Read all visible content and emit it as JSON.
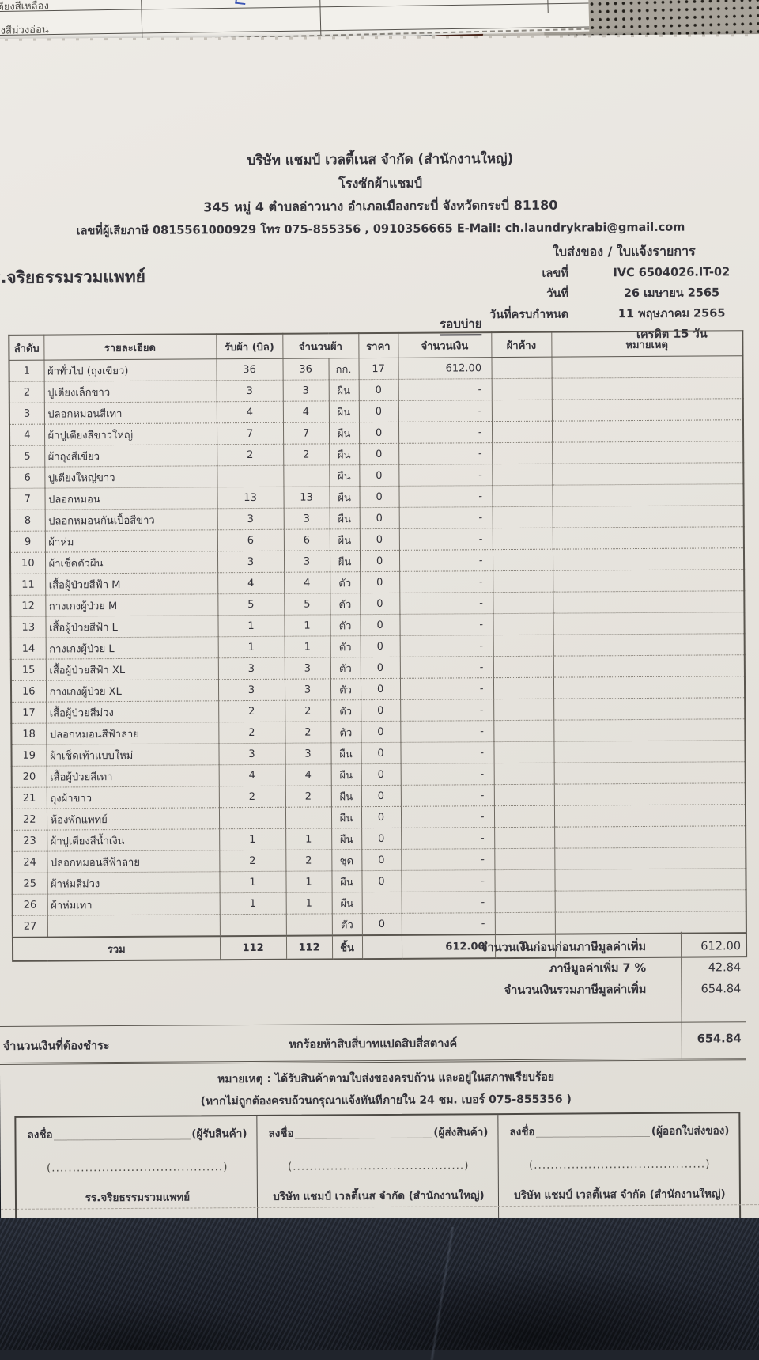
{
  "background": {
    "scrap_labels": [
      "ตียงสีเหลือง",
      "ียงสีม่วงอ่อน"
    ]
  },
  "header": {
    "company": "บริษัท แชมป์ เวลตี้เนส จำกัด (สำนักงานใหญ่)",
    "branch": "โรงซักผ้าแชมป์",
    "address": "345 หมู่ 4 ตำบลอ่าวนาง อำเภอเมืองกระบี่ จังหวัดกระบี่ 81180",
    "contact": "เลขที่ผู้เสียภาษี 0815561000929 โทร 075-855356 , 0910356665  E-Mail: ch.laundrykrabi@gmail.com"
  },
  "doc": {
    "title": "ใบส่งของ / ใบแจ้งรายการ",
    "customer": "รร.จริยธรรมรวมแพทย์",
    "round": "รอบบ่าย",
    "meta_rows": [
      {
        "label": "เลขที่",
        "value": "IVC 6504026.IT-02"
      },
      {
        "label": "วันที่",
        "value": "26 เมษายน 2565"
      },
      {
        "label": "วันที่ครบกำหนด",
        "value": "11 พฤษภาคม 2565"
      },
      {
        "label": "",
        "value": "เครดิต 15 วัน"
      }
    ]
  },
  "table": {
    "headers": {
      "no": "ลำดับ",
      "desc": "รายละเอียด",
      "received": "รับผ้า (บิล)",
      "qty": "จำนวนผ้า",
      "price": "ราคา",
      "amount": "จำนวนเงิน",
      "pending": "ผ้าค้าง",
      "remark": "หมายเหตุ"
    },
    "rows": [
      {
        "no": "1",
        "desc": "ผ้าทั่วไป (ถุงเขียว)",
        "recv": "36",
        "qty": "36",
        "unit": "กก.",
        "price": "17",
        "amount": "612.00",
        "pending": "",
        "remark": ""
      },
      {
        "no": "2",
        "desc": "ปูเตียงเล็กขาว",
        "recv": "3",
        "qty": "3",
        "unit": "ผืน",
        "price": "0",
        "amount": "-",
        "pending": "",
        "remark": ""
      },
      {
        "no": "3",
        "desc": "ปลอกหมอนสีเทา",
        "recv": "4",
        "qty": "4",
        "unit": "ผืน",
        "price": "0",
        "amount": "-",
        "pending": "",
        "remark": ""
      },
      {
        "no": "4",
        "desc": "ผ้าปูเตียงสีขาวใหญ่",
        "recv": "7",
        "qty": "7",
        "unit": "ผืน",
        "price": "0",
        "amount": "-",
        "pending": "",
        "remark": ""
      },
      {
        "no": "5",
        "desc": "ผ้าถุงสีเขียว",
        "recv": "2",
        "qty": "2",
        "unit": "ผืน",
        "price": "0",
        "amount": "-",
        "pending": "",
        "remark": ""
      },
      {
        "no": "6",
        "desc": "ปูเตียงใหญ่ขาว",
        "recv": "",
        "qty": "",
        "unit": "ผืน",
        "price": "0",
        "amount": "-",
        "pending": "",
        "remark": ""
      },
      {
        "no": "7",
        "desc": "ปลอกหมอน",
        "recv": "13",
        "qty": "13",
        "unit": "ผืน",
        "price": "0",
        "amount": "-",
        "pending": "",
        "remark": ""
      },
      {
        "no": "8",
        "desc": "ปลอกหมอนกันเปื้อสีขาว",
        "recv": "3",
        "qty": "3",
        "unit": "ผืน",
        "price": "0",
        "amount": "-",
        "pending": "",
        "remark": ""
      },
      {
        "no": "9",
        "desc": "ผ้าห่ม",
        "recv": "6",
        "qty": "6",
        "unit": "ผืน",
        "price": "0",
        "amount": "-",
        "pending": "",
        "remark": ""
      },
      {
        "no": "10",
        "desc": "ผ้าเช็ดตัวผืน",
        "recv": "3",
        "qty": "3",
        "unit": "ผืน",
        "price": "0",
        "amount": "-",
        "pending": "",
        "remark": ""
      },
      {
        "no": "11",
        "desc": "เสื้อผู้ป่วยสีฟ้า M",
        "recv": "4",
        "qty": "4",
        "unit": "ตัว",
        "price": "0",
        "amount": "-",
        "pending": "",
        "remark": ""
      },
      {
        "no": "12",
        "desc": "กางเกงผู้ป่วย M",
        "recv": "5",
        "qty": "5",
        "unit": "ตัว",
        "price": "0",
        "amount": "-",
        "pending": "",
        "remark": ""
      },
      {
        "no": "13",
        "desc": "เสื้อผู้ป่วยสีฟ้า L",
        "recv": "1",
        "qty": "1",
        "unit": "ตัว",
        "price": "0",
        "amount": "-",
        "pending": "",
        "remark": ""
      },
      {
        "no": "14",
        "desc": "กางเกงผู้ป่วย L",
        "recv": "1",
        "qty": "1",
        "unit": "ตัว",
        "price": "0",
        "amount": "-",
        "pending": "",
        "remark": ""
      },
      {
        "no": "15",
        "desc": "เสื้อผู้ป่วยสีฟ้า XL",
        "recv": "3",
        "qty": "3",
        "unit": "ตัว",
        "price": "0",
        "amount": "-",
        "pending": "",
        "remark": ""
      },
      {
        "no": "16",
        "desc": "กางเกงผู้ป่วย XL",
        "recv": "3",
        "qty": "3",
        "unit": "ตัว",
        "price": "0",
        "amount": "-",
        "pending": "",
        "remark": ""
      },
      {
        "no": "17",
        "desc": "เสื้อผู้ป่วยสีม่วง",
        "recv": "2",
        "qty": "2",
        "unit": "ตัว",
        "price": "0",
        "amount": "-",
        "pending": "",
        "remark": ""
      },
      {
        "no": "18",
        "desc": "ปลอกหมอนสีฟ้าลาย",
        "recv": "2",
        "qty": "2",
        "unit": "ตัว",
        "price": "0",
        "amount": "-",
        "pending": "",
        "remark": ""
      },
      {
        "no": "19",
        "desc": "ผ้าเช็ดเท้าแบบใหม่",
        "recv": "3",
        "qty": "3",
        "unit": "ผืน",
        "price": "0",
        "amount": "-",
        "pending": "",
        "remark": ""
      },
      {
        "no": "20",
        "desc": "เสื้อผู้ป่วยสีเทา",
        "recv": "4",
        "qty": "4",
        "unit": "ผืน",
        "price": "0",
        "amount": "-",
        "pending": "",
        "remark": ""
      },
      {
        "no": "21",
        "desc": "ถุงผ้าขาว",
        "recv": "2",
        "qty": "2",
        "unit": "ผืน",
        "price": "0",
        "amount": "-",
        "pending": "",
        "remark": ""
      },
      {
        "no": "22",
        "desc": "ห้องพักแพทย์",
        "recv": "",
        "qty": "",
        "unit": "ผืน",
        "price": "0",
        "amount": "-",
        "pending": "",
        "remark": ""
      },
      {
        "no": "23",
        "desc": "ผ้าปูเตียงสีน้ำเงิน",
        "recv": "1",
        "qty": "1",
        "unit": "ผืน",
        "price": "0",
        "amount": "-",
        "pending": "",
        "remark": ""
      },
      {
        "no": "24",
        "desc": "ปลอกหมอนสีฟ้าลาย",
        "recv": "2",
        "qty": "2",
        "unit": "ชุด",
        "price": "0",
        "amount": "-",
        "pending": "",
        "remark": ""
      },
      {
        "no": "25",
        "desc": "ผ้าห่มสีม่วง",
        "recv": "1",
        "qty": "1",
        "unit": "ผืน",
        "price": "0",
        "amount": "-",
        "pending": "",
        "remark": ""
      },
      {
        "no": "26",
        "desc": "ผ้าห่มเทา",
        "recv": "1",
        "qty": "1",
        "unit": "ผืน",
        "price": "",
        "amount": "-",
        "pending": "",
        "remark": ""
      },
      {
        "no": "27",
        "desc": "",
        "recv": "",
        "qty": "",
        "unit": "ตัว",
        "price": "0",
        "amount": "-",
        "pending": "",
        "remark": ""
      }
    ],
    "total": {
      "label": "รวม",
      "recv": "112",
      "qty": "112",
      "unit": "ชิ้น",
      "price": "",
      "amount": "612.00",
      "pending": "0",
      "remark": ""
    }
  },
  "summary": {
    "lines": [
      {
        "label": "จำนวนเงินก่อนก่อนภาษีมูลค่าเพิ่ม",
        "value": "612.00"
      },
      {
        "label": "ภาษีมูลค่าเพิ่ม 7 %",
        "value": "42.84"
      },
      {
        "label": "จำนวนเงินรวมภาษีมูลค่าเพิ่ม",
        "value": "654.84"
      }
    ],
    "due": {
      "label": "จำนวนเงินที่ต้องชำระ",
      "words": "หกร้อยห้าสิบสี่บาทแปดสิบสี่สตางค์",
      "value": "654.84"
    }
  },
  "notes": {
    "line1": "หมายเหตุ : ได้รับสินค้าตามใบส่งของครบถ้วน และอยู่ในสภาพเรียบร้อย",
    "line2": "(หากไม่ถูกต้องครบถ้วนกรุณาแจ้งทันทีภายใน 24 ชม.  เบอร์ 075-855356 )"
  },
  "signatures": [
    {
      "sign": "ลงชื่อ",
      "role": "(ผู้รับสินค้า)",
      "parens": "(.........................................)",
      "org": "รร.จริยธรรมรวมแพทย์"
    },
    {
      "sign": "ลงชื่อ",
      "role": "(ผู้ส่งสินค้า)",
      "parens": "(.........................................)",
      "org": "บริษัท แชมป์ เวลตี้เนส จำกัด (สำนักงานใหญ่)"
    },
    {
      "sign": "ลงชื่อ",
      "role": "(ผู้ออกใบส่งของ)",
      "parens": "(.........................................)",
      "org": "บริษัท แชมป์ เวลตี้เนส จำกัด (สำนักงานใหญ่)"
    }
  ]
}
